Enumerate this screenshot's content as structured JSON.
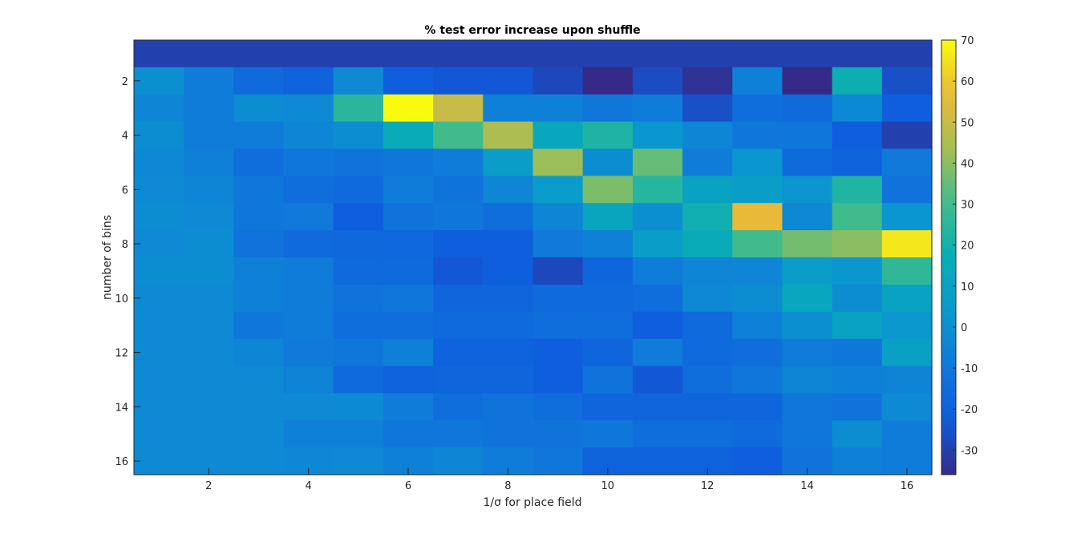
{
  "chart_data": {
    "type": "heatmap",
    "title": "% test error increase upon shuffle",
    "xlabel": "1/σ for place field",
    "ylabel": "number of bins",
    "x_categories": [
      1,
      2,
      3,
      4,
      5,
      6,
      7,
      8,
      9,
      10,
      11,
      12,
      13,
      14,
      15,
      16
    ],
    "y_categories": [
      1,
      2,
      3,
      4,
      5,
      6,
      7,
      8,
      9,
      10,
      11,
      12,
      13,
      14,
      15,
      16
    ],
    "x_ticks": [
      2,
      4,
      6,
      8,
      10,
      12,
      14,
      16
    ],
    "y_ticks": [
      2,
      4,
      6,
      8,
      10,
      12,
      14,
      16
    ],
    "colorbar": {
      "range": [
        -36,
        70
      ],
      "ticks": [
        70,
        60,
        50,
        40,
        30,
        20,
        10,
        0,
        -10,
        -20,
        -30
      ],
      "colormap": "parula"
    },
    "values": [
      [
        -30,
        -30,
        -30,
        -30,
        -30,
        -30,
        -30,
        -30,
        -30,
        -30,
        -30,
        -30,
        -30,
        -30,
        -30,
        -30
      ],
      [
        0,
        -8,
        -16,
        -20,
        -2,
        -22,
        -24,
        -24,
        -28,
        -36,
        -27,
        -34,
        -6,
        -36,
        18,
        -26
      ],
      [
        -4,
        -8,
        -1,
        -2,
        25,
        70,
        50,
        -6,
        -6,
        -10,
        -8,
        -26,
        -14,
        -16,
        -3,
        -22
      ],
      [
        -1,
        -8,
        -8,
        -4,
        -1,
        16,
        30,
        45,
        13,
        22,
        3,
        -4,
        -10,
        -10,
        -22,
        -30
      ],
      [
        -3,
        -6,
        -14,
        -10,
        -12,
        -10,
        -8,
        7,
        42,
        -1,
        35,
        -8,
        3,
        -16,
        -20,
        -9
      ],
      [
        -2,
        -4,
        -10,
        -14,
        -16,
        -8,
        -12,
        -4,
        6,
        38,
        24,
        10,
        7,
        2,
        23,
        -12
      ],
      [
        -1,
        -2,
        -10,
        -9,
        -22,
        -12,
        -10,
        -14,
        -4,
        12,
        0,
        19,
        57,
        -3,
        30,
        3
      ],
      [
        -2,
        -1,
        -12,
        -16,
        -17,
        -17,
        -22,
        -22,
        -9,
        -6,
        7,
        16,
        30,
        37,
        40,
        66
      ],
      [
        -1,
        -1,
        -6,
        -8,
        -16,
        -16,
        -24,
        -22,
        -28,
        -18,
        -8,
        -4,
        -4,
        7,
        3,
        26
      ],
      [
        -2,
        -2,
        -6,
        -8,
        -12,
        -10,
        -18,
        -18,
        -16,
        -16,
        -14,
        -3,
        -1,
        13,
        -1,
        10
      ],
      [
        -2,
        -2,
        -10,
        -8,
        -14,
        -14,
        -16,
        -16,
        -14,
        -14,
        -22,
        -16,
        -6,
        0,
        10,
        4
      ],
      [
        -2,
        -2,
        -4,
        -9,
        -10,
        -6,
        -20,
        -20,
        -22,
        -18,
        -8,
        -16,
        -14,
        -8,
        -10,
        9
      ],
      [
        -2,
        -2,
        -2,
        -5,
        -16,
        -20,
        -18,
        -18,
        -22,
        -12,
        -24,
        -14,
        -10,
        -4,
        -6,
        -5
      ],
      [
        -2,
        -2,
        -2,
        -2,
        -2,
        -8,
        -14,
        -12,
        -14,
        -18,
        -18,
        -18,
        -18,
        -10,
        -12,
        -2
      ],
      [
        -2,
        -2,
        -2,
        -6,
        -6,
        -10,
        -10,
        -12,
        -12,
        -10,
        -14,
        -14,
        -16,
        -10,
        -1,
        -8
      ],
      [
        -2,
        -2,
        -2,
        -3,
        -2,
        -6,
        -4,
        -8,
        -10,
        -20,
        -20,
        -20,
        -22,
        -12,
        -6,
        -8
      ]
    ]
  }
}
